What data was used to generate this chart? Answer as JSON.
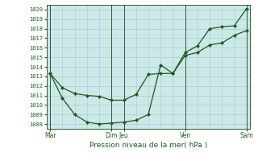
{
  "xlabel": "Pression niveau de la mer( hPa )",
  "bg_color": "#cce8e8",
  "plot_bg_color": "#cce8e8",
  "outer_bg": "#ffffff",
  "grid_color": "#aacccc",
  "line_color": "#1a5c1a",
  "marker_color": "#1a5c1a",
  "ylim": [
    1007.5,
    1020.5
  ],
  "yticks": [
    1008,
    1009,
    1010,
    1011,
    1012,
    1013,
    1014,
    1015,
    1016,
    1017,
    1018,
    1019,
    1020
  ],
  "major_xtick_positions": [
    0,
    5,
    6,
    11,
    16
  ],
  "major_xtick_labels": [
    "Mar",
    "Dim",
    "Jeu",
    "Ven",
    "Sam"
  ],
  "xlim": [
    -0.3,
    16.3
  ],
  "line1_x": [
    0,
    1,
    2,
    3,
    4,
    5,
    6,
    7,
    8,
    9,
    10,
    11,
    12,
    13,
    14,
    15,
    16
  ],
  "line1_y": [
    1013.3,
    1011.8,
    1011.2,
    1011.0,
    1010.9,
    1010.5,
    1010.5,
    1011.1,
    1013.2,
    1013.3,
    1013.3,
    1015.2,
    1015.5,
    1016.3,
    1016.5,
    1017.3,
    1017.8
  ],
  "line2_x": [
    0,
    1,
    2,
    3,
    4,
    5,
    6,
    7,
    8,
    9,
    10,
    11,
    12,
    13,
    14,
    15,
    16
  ],
  "line2_y": [
    1013.3,
    1010.7,
    1009.0,
    1008.2,
    1008.0,
    1008.1,
    1008.2,
    1008.4,
    1009.0,
    1014.2,
    1013.3,
    1015.5,
    1016.2,
    1018.0,
    1018.2,
    1018.3,
    1020.1
  ]
}
